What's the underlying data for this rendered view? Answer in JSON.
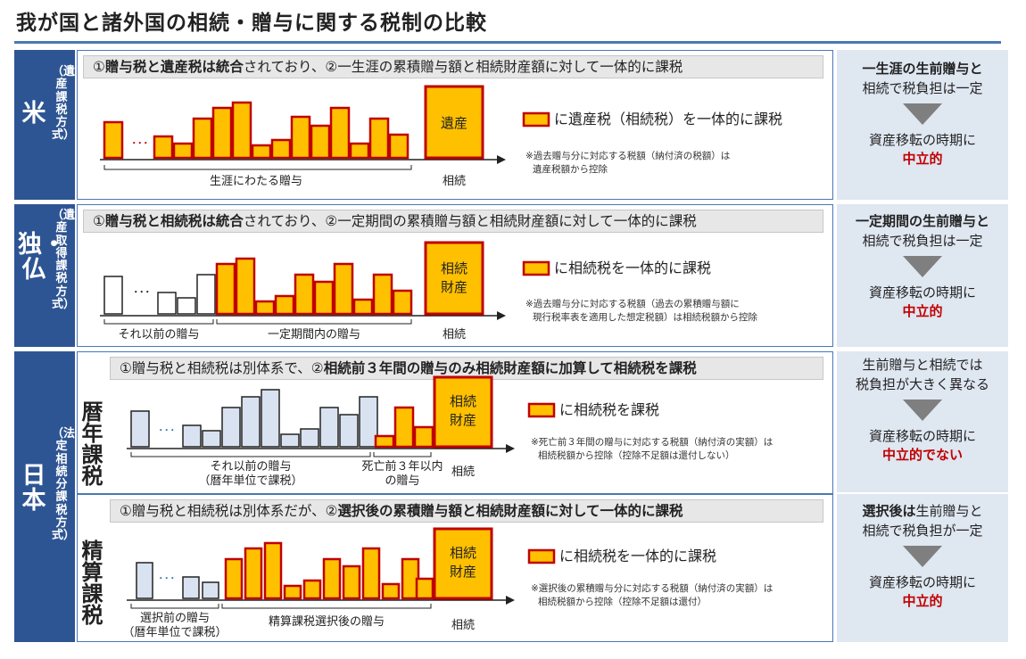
{
  "title": "我が国と諸外国の相続・贈与に関する税制の比較",
  "colors": {
    "accent": "#2e5593",
    "gift": "#ffc000",
    "gift_stroke": "#c00000",
    "pre": "#d9e2f0",
    "red": "#c00000"
  },
  "us": {
    "country": "米",
    "method": "（遺産課税方式）",
    "header_pre": "①",
    "header_b1": "贈与税と遺産税は統合",
    "header_mid": "されており、②一生涯の累積贈与額と相続財産額に対して一体的に課税",
    "estate_label": "遺産",
    "legend": "に遺産税（相続税）を一体的に課税",
    "note1": "※過去贈与分に対応する税額（納付済の税額）は",
    "note2": "遺産税額から控除",
    "label_gifts": "生涯にわたる贈与",
    "label_inherit": "相続",
    "side": {
      "l1": "一生涯の生前贈与と",
      "l2": "相続で税負担は一定",
      "l3": "資産移転の時期に",
      "red": "中立的"
    }
  },
  "de": {
    "country": "独・仏",
    "method": "（遺産取得課税方式）",
    "header_pre": "①",
    "header_b1": "贈与税と相続税は統合",
    "header_mid": "されており、②一定期間の累積贈与額と相続財産額に対して一体的に課税",
    "estate_label1": "相続",
    "estate_label2": "財産",
    "legend": "に相続税を一体的に課税",
    "note1": "※過去贈与分に対応する税額（過去の累積贈与額に",
    "note2": "現行税率表を適用した想定税額）は相続税額から控除",
    "label_before": "それ以前の贈与",
    "label_period": "一定期間内の贈与",
    "label_inherit": "相続",
    "side": {
      "l1": "一定期間の生前贈与と",
      "l2": "相続で税負担は一定",
      "l3": "資産移転の時期に",
      "red": "中立的"
    }
  },
  "jp": {
    "country": "日本",
    "method": "（法定相続分課税方式）",
    "calendar": {
      "tax_label": "暦年課税",
      "header_a": "①贈与税と相続税は別体系で、②",
      "header_b": "相続前３年間の贈与のみ相続財産額に加算して相続税を課税",
      "estate_label1": "相続",
      "estate_label2": "財産",
      "legend": "に相続税を課税",
      "note1": "※死亡前３年間の贈与に対応する税額（納付済の実額）は",
      "note2": "相続税額から控除（控除不足額は還付しない）",
      "label_before1": "それ以前の贈与",
      "label_before2": "（暦年単位で課税）",
      "label_3y1": "死亡前３年以内",
      "label_3y2": "の贈与",
      "label_inherit": "相続",
      "side": {
        "l1": "生前贈与と相続では",
        "l2": "税負担が大きく異なる",
        "l3": "資産移転の時期に",
        "red": "中立的でない"
      }
    },
    "settlement": {
      "tax_label": "精算課税",
      "header_a": "①贈与税と相続税は別体系だが、②",
      "header_b": "選択後の累積贈与額と相続財産額に対して一体的に課税",
      "estate_label1": "相続",
      "estate_label2": "財産",
      "legend": "に相続税を一体的に課税",
      "note1": "※選択後の累積贈与分に対応する税額（納付済の実額）は",
      "note2": "相続税額から控除（控除不足額は還付）",
      "label_before1": "選択前の贈与",
      "label_before2": "（暦年単位で課税）",
      "label_after": "精算課税選択後の贈与",
      "label_inherit": "相続",
      "side": {
        "l1b": "選択後は",
        "l1": "生前贈与と",
        "l2": "相続で税負担が一定",
        "l3": "資産移転の時期に",
        "red": "中立的"
      }
    }
  },
  "dots": "･･･"
}
